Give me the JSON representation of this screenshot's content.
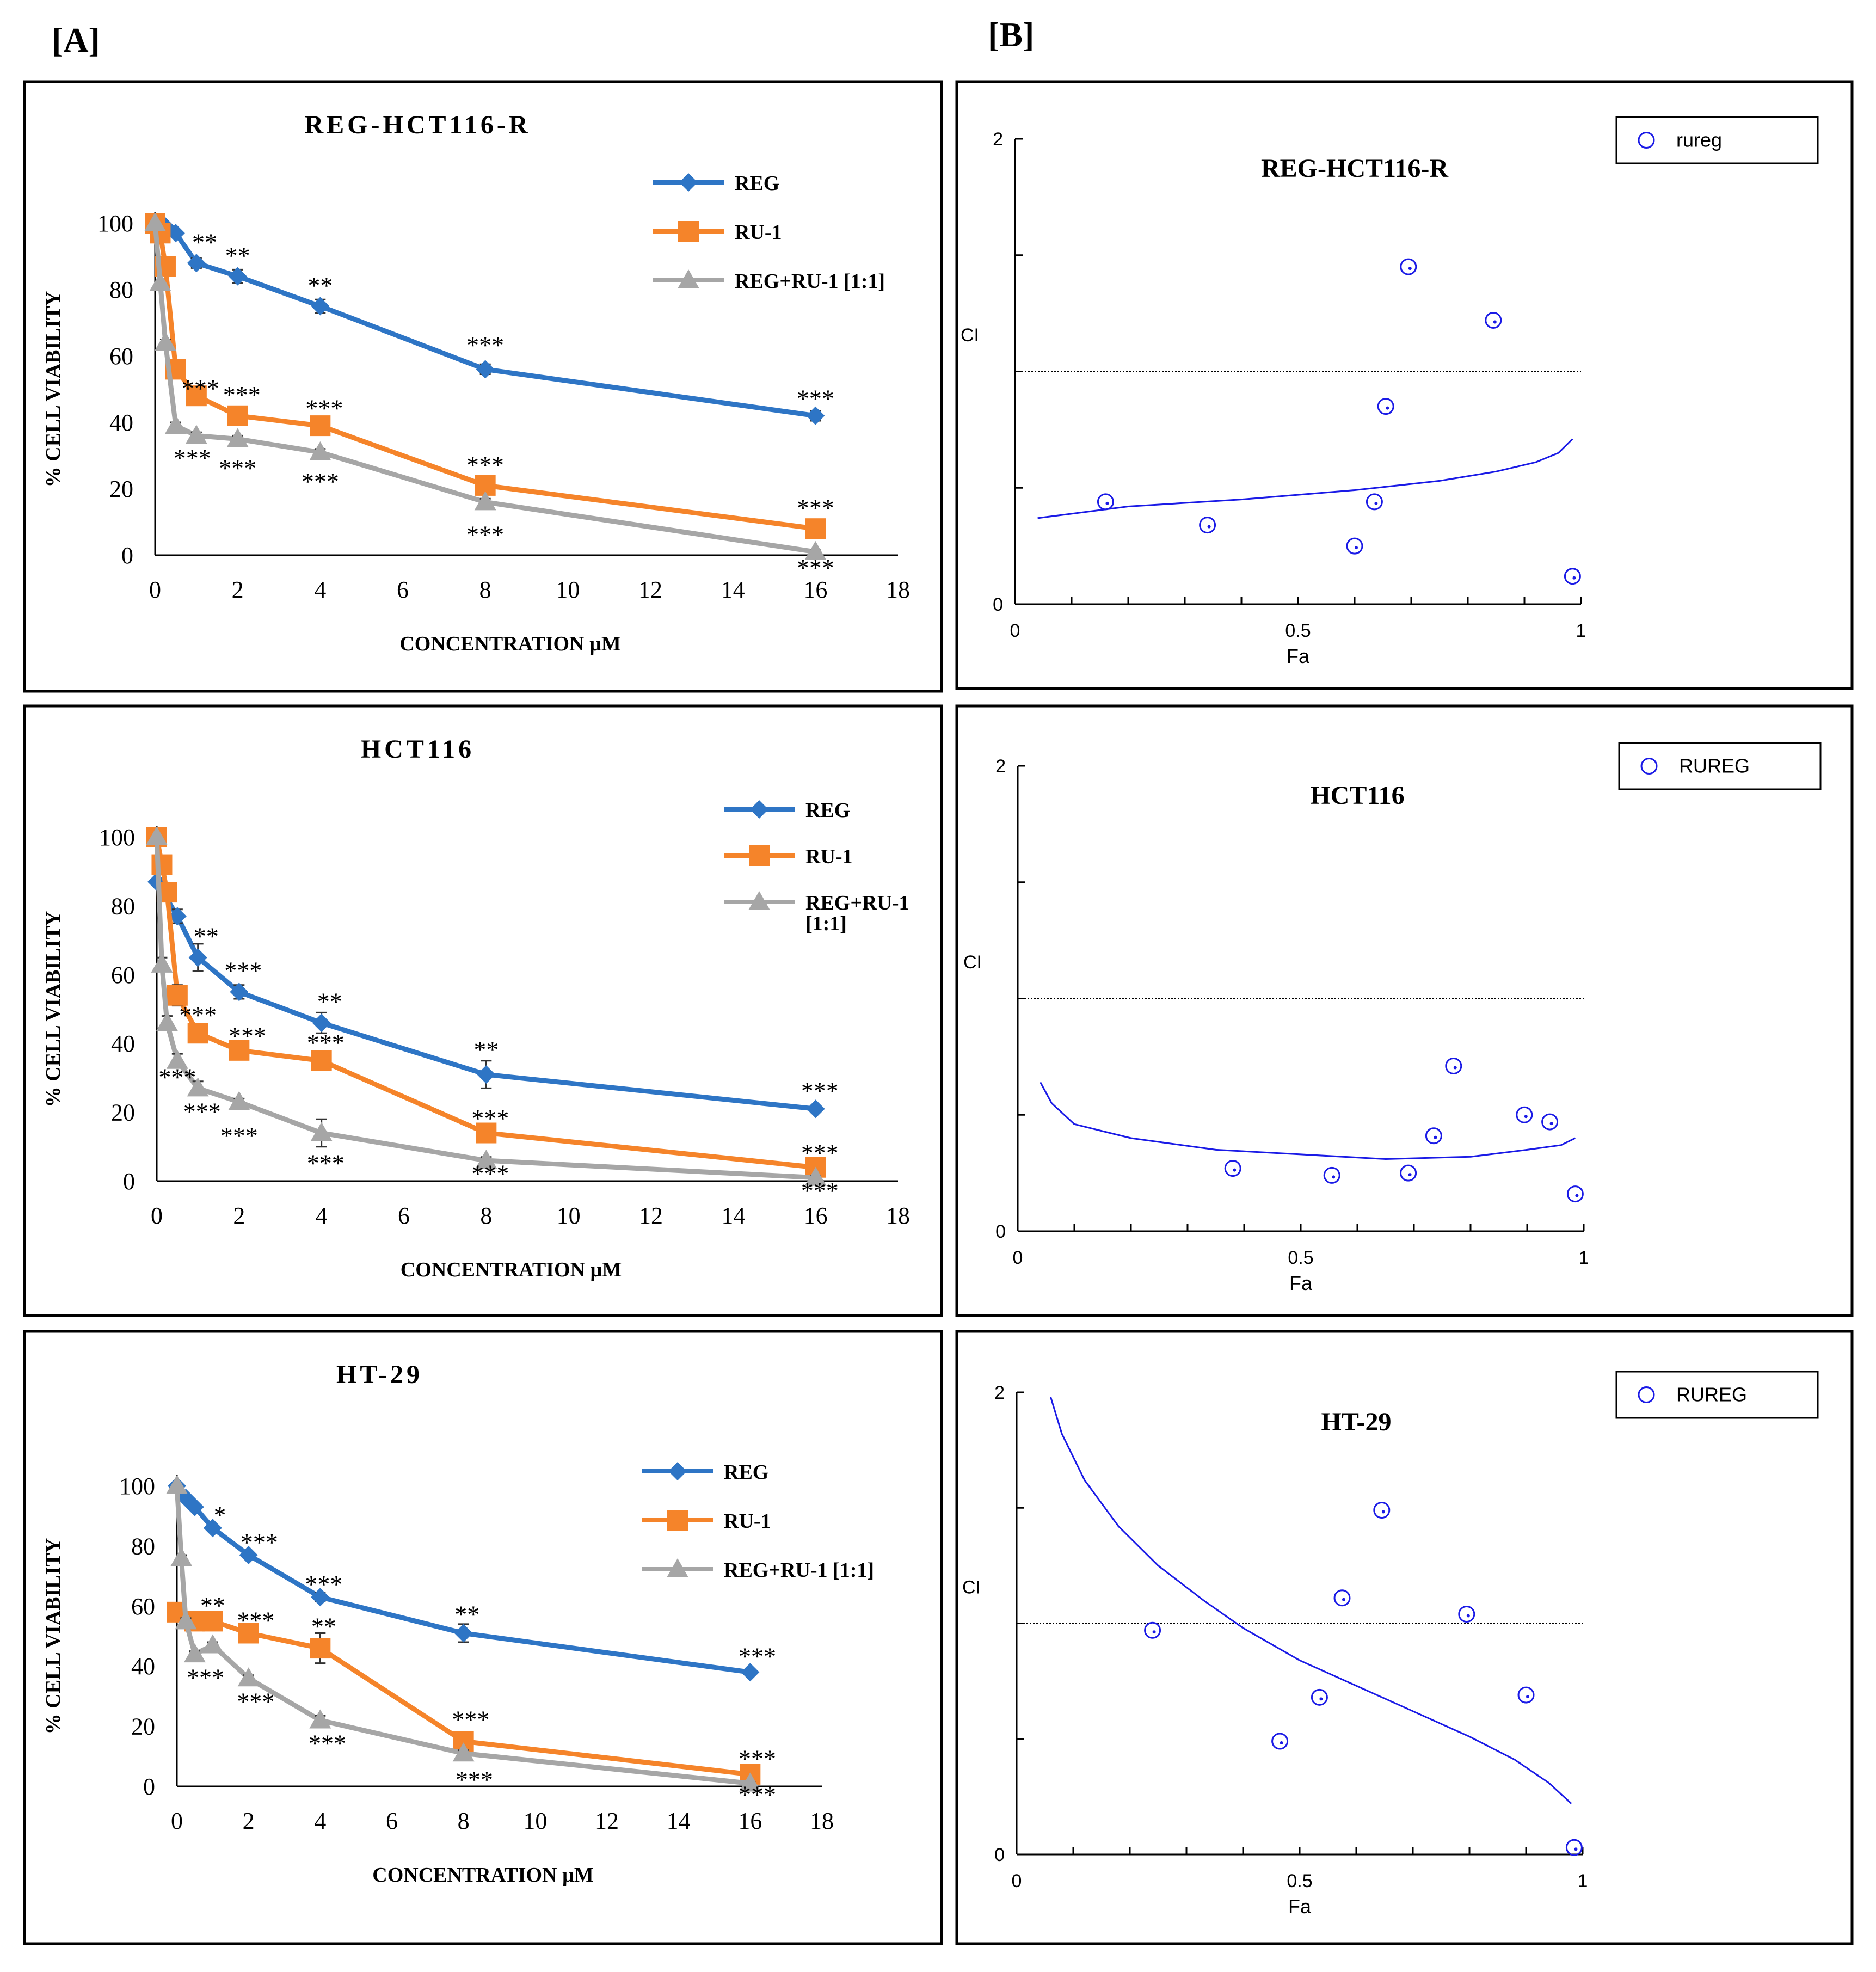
{
  "panel_labels": {
    "a": "[A]",
    "b": "[B]"
  },
  "colors": {
    "reg": "#2E75C5",
    "ru1": "#F5842A",
    "combo": "#A6A6A6",
    "ci": "#1A1AE6",
    "axis": "#000000"
  },
  "chart_data": [
    {
      "id": "a1",
      "type": "line",
      "title": "REG-HCT116-R",
      "xlabel": "CONCENTRATION µM",
      "ylabel": "% CELL VIABILITY",
      "xlim": [
        0,
        18
      ],
      "ylim": [
        0,
        100
      ],
      "xticks": [
        0,
        2,
        4,
        6,
        8,
        10,
        12,
        14,
        16,
        18
      ],
      "yticks": [
        0,
        20,
        40,
        60,
        80,
        100
      ],
      "legend": {
        "position": "top-right",
        "entries": [
          "REG",
          "RU-1",
          "REG+RU-1 [1:1]"
        ]
      },
      "series": [
        {
          "name": "REG",
          "marker": "diamond",
          "x": [
            0,
            0.25,
            0.5,
            1,
            2,
            4,
            8,
            16
          ],
          "y": [
            100,
            99,
            97,
            88,
            84,
            75,
            56,
            42
          ],
          "err": [
            0,
            0,
            1,
            1.5,
            2,
            2,
            1.5,
            1.5
          ]
        },
        {
          "name": "RU-1",
          "marker": "square",
          "x": [
            0,
            0.125,
            0.25,
            0.5,
            1,
            2,
            4,
            8,
            16
          ],
          "y": [
            100,
            97,
            87,
            56,
            48,
            42,
            39,
            21,
            8
          ],
          "err": [
            0,
            0,
            1,
            2,
            1.5,
            1.5,
            1.5,
            1.5,
            1
          ]
        },
        {
          "name": "REG+RU-1 [1:1]",
          "marker": "triangle",
          "x": [
            0,
            0.125,
            0.25,
            0.5,
            1,
            2,
            4,
            8,
            16
          ],
          "y": [
            100,
            82,
            64,
            39,
            36,
            35,
            31,
            16,
            1
          ],
          "err": [
            0,
            0,
            1,
            1,
            1,
            1,
            1,
            1,
            0.5
          ]
        }
      ],
      "annotations": [
        {
          "x": 1.2,
          "y": 94,
          "text": "**"
        },
        {
          "x": 2,
          "y": 90,
          "text": "**"
        },
        {
          "x": 4,
          "y": 81,
          "text": "**"
        },
        {
          "x": 8,
          "y": 63,
          "text": "***"
        },
        {
          "x": 16,
          "y": 47,
          "text": "***"
        },
        {
          "x": 1.1,
          "y": 50,
          "text": "***"
        },
        {
          "x": 2.1,
          "y": 48,
          "text": "***"
        },
        {
          "x": 4.1,
          "y": 44,
          "text": "***"
        },
        {
          "x": 8,
          "y": 27,
          "text": "***"
        },
        {
          "x": 16,
          "y": 14,
          "text": "***"
        },
        {
          "x": 0.9,
          "y": 29,
          "text": "***"
        },
        {
          "x": 2,
          "y": 26,
          "text": "***"
        },
        {
          "x": 4,
          "y": 22,
          "text": "***"
        },
        {
          "x": 8,
          "y": 6,
          "text": "***"
        },
        {
          "x": 16,
          "y": -4,
          "text": "***"
        }
      ]
    },
    {
      "id": "a2",
      "type": "line",
      "title": "HCT116",
      "xlabel": "CONCENTRATION µM",
      "ylabel": "% CELL VIABILITY",
      "xlim": [
        0,
        18
      ],
      "ylim": [
        0,
        100
      ],
      "xticks": [
        0,
        2,
        4,
        6,
        8,
        10,
        12,
        14,
        16,
        18
      ],
      "yticks": [
        0,
        20,
        40,
        60,
        80,
        100
      ],
      "legend": {
        "position": "top-right",
        "entries": [
          "REG",
          "RU-1",
          "REG+RU-1",
          "[1:1]"
        ]
      },
      "series": [
        {
          "name": "REG",
          "marker": "diamond",
          "x": [
            0,
            0.5,
            1,
            2,
            4,
            8,
            16
          ],
          "y": [
            87,
            77,
            65,
            55,
            46,
            31,
            21
          ],
          "err": [
            0,
            2,
            4,
            2,
            3,
            4,
            1
          ]
        },
        {
          "name": "RU-1",
          "marker": "square",
          "x": [
            0,
            0.125,
            0.25,
            0.5,
            1,
            2,
            4,
            8,
            16
          ],
          "y": [
            100,
            92,
            84,
            54,
            43,
            38,
            35,
            14,
            4
          ],
          "err": [
            0,
            1,
            1,
            3,
            2,
            2,
            2,
            2,
            1
          ]
        },
        {
          "name": "REG+RU-1 [1:1]",
          "marker": "triangle",
          "x": [
            0,
            0.125,
            0.25,
            0.5,
            1,
            2,
            4,
            8,
            16
          ],
          "y": [
            100,
            63,
            46,
            35,
            27,
            23,
            14,
            6,
            1
          ],
          "err": [
            0,
            2,
            2,
            2,
            2,
            1,
            4,
            1,
            0.5
          ]
        }
      ],
      "annotations": [
        {
          "x": 1.2,
          "y": 71,
          "text": "**"
        },
        {
          "x": 2.1,
          "y": 61,
          "text": "***"
        },
        {
          "x": 4.2,
          "y": 52,
          "text": "**"
        },
        {
          "x": 8,
          "y": 38,
          "text": "**"
        },
        {
          "x": 16.1,
          "y": 26,
          "text": "***"
        },
        {
          "x": 1,
          "y": 48,
          "text": "***"
        },
        {
          "x": 2.2,
          "y": 42,
          "text": "***"
        },
        {
          "x": 4.1,
          "y": 40,
          "text": "***"
        },
        {
          "x": 8.1,
          "y": 18,
          "text": "***"
        },
        {
          "x": 16.1,
          "y": 8,
          "text": "***"
        },
        {
          "x": 0.5,
          "y": 30,
          "text": "***"
        },
        {
          "x": 1.1,
          "y": 20,
          "text": "***"
        },
        {
          "x": 2,
          "y": 13,
          "text": "***"
        },
        {
          "x": 4.1,
          "y": 5,
          "text": "***"
        },
        {
          "x": 8.1,
          "y": 2,
          "text": "***"
        },
        {
          "x": 16.1,
          "y": -3,
          "text": "***"
        }
      ]
    },
    {
      "id": "a3",
      "type": "line",
      "title": "HT-29",
      "xlabel": "CONCENTRATION µM",
      "ylabel": "% CELL VIABILITY",
      "xlim": [
        0,
        18
      ],
      "ylim": [
        0,
        100
      ],
      "xticks": [
        0,
        2,
        4,
        6,
        8,
        10,
        12,
        14,
        16,
        18
      ],
      "yticks": [
        0,
        20,
        40,
        60,
        80,
        100
      ],
      "legend": {
        "position": "top-right",
        "entries": [
          "REG",
          "RU-1",
          "REG+RU-1 [1:1]"
        ]
      },
      "series": [
        {
          "name": "REG",
          "marker": "diamond",
          "x": [
            0,
            0.25,
            0.5,
            1,
            2,
            4,
            8,
            16
          ],
          "y": [
            100,
            96,
            93,
            86,
            77,
            63,
            51,
            38
          ],
          "err": [
            0,
            1,
            1,
            1,
            1,
            1.5,
            3,
            1
          ]
        },
        {
          "name": "RU-1",
          "marker": "square",
          "x": [
            0,
            0.5,
            1,
            2,
            4,
            8,
            16
          ],
          "y": [
            58,
            55,
            55,
            51,
            46,
            15,
            4
          ],
          "err": [
            0,
            2,
            2,
            2,
            5,
            1.5,
            1
          ]
        },
        {
          "name": "REG+RU-1 [1:1]",
          "marker": "triangle",
          "x": [
            0,
            0.125,
            0.25,
            0.5,
            1,
            2,
            4,
            8,
            16
          ],
          "y": [
            100,
            76,
            55,
            44,
            47,
            36,
            22,
            11,
            1
          ],
          "err": [
            0,
            1,
            1,
            1,
            1,
            1,
            1.5,
            1,
            0.5
          ]
        }
      ],
      "annotations": [
        {
          "x": 1.2,
          "y": 90,
          "text": "*"
        },
        {
          "x": 2.3,
          "y": 81,
          "text": "***"
        },
        {
          "x": 4.1,
          "y": 67,
          "text": "***"
        },
        {
          "x": 8.1,
          "y": 57,
          "text": "**"
        },
        {
          "x": 16.2,
          "y": 43,
          "text": "***"
        },
        {
          "x": 1,
          "y": 60,
          "text": "**"
        },
        {
          "x": 2.2,
          "y": 55,
          "text": "***"
        },
        {
          "x": 4.1,
          "y": 53,
          "text": "**"
        },
        {
          "x": 8.2,
          "y": 22,
          "text": "***"
        },
        {
          "x": 16.2,
          "y": 9,
          "text": "***"
        },
        {
          "x": 0.8,
          "y": 36,
          "text": "***"
        },
        {
          "x": 2.2,
          "y": 28,
          "text": "***"
        },
        {
          "x": 4.2,
          "y": 14,
          "text": "***"
        },
        {
          "x": 8.3,
          "y": 2,
          "text": "***"
        },
        {
          "x": 16.2,
          "y": -3,
          "text": "***"
        }
      ]
    },
    {
      "id": "b1",
      "type": "scatter",
      "title": "REG-HCT116-R",
      "xlabel": "Fa",
      "ylabel": "CI",
      "xlim": [
        0,
        1
      ],
      "ylim": [
        0,
        2
      ],
      "xtick_labels": [
        "0",
        "0.5",
        "1"
      ],
      "ytick_labels": [
        "0",
        "2"
      ],
      "reference_line": 1,
      "legend": {
        "position": "top-right",
        "entries": [
          "rureg"
        ]
      },
      "points": [
        [
          0.16,
          0.44
        ],
        [
          0.34,
          0.34
        ],
        [
          0.6,
          0.25
        ],
        [
          0.635,
          0.44
        ],
        [
          0.655,
          0.85
        ],
        [
          0.695,
          1.45
        ],
        [
          0.845,
          1.22
        ],
        [
          0.985,
          0.12
        ]
      ],
      "curve": [
        [
          0.04,
          0.37
        ],
        [
          0.2,
          0.42
        ],
        [
          0.4,
          0.45
        ],
        [
          0.6,
          0.49
        ],
        [
          0.75,
          0.53
        ],
        [
          0.85,
          0.57
        ],
        [
          0.92,
          0.61
        ],
        [
          0.96,
          0.65
        ],
        [
          0.985,
          0.71
        ]
      ]
    },
    {
      "id": "b2",
      "type": "scatter",
      "title": "HCT116",
      "xlabel": "Fa",
      "ylabel": "CI",
      "xlim": [
        0,
        1
      ],
      "ylim": [
        0,
        2
      ],
      "xtick_labels": [
        "0",
        "0.5",
        "1"
      ],
      "ytick_labels": [
        "0",
        "2"
      ],
      "reference_line": 1,
      "legend": {
        "position": "top-right",
        "entries": [
          "RUREG"
        ]
      },
      "points": [
        [
          0.38,
          0.27
        ],
        [
          0.555,
          0.24
        ],
        [
          0.69,
          0.25
        ],
        [
          0.735,
          0.41
        ],
        [
          0.77,
          0.71
        ],
        [
          0.895,
          0.5
        ],
        [
          0.94,
          0.47
        ],
        [
          0.985,
          0.16
        ]
      ],
      "curve": [
        [
          0.04,
          0.64
        ],
        [
          0.06,
          0.55
        ],
        [
          0.1,
          0.46
        ],
        [
          0.2,
          0.4
        ],
        [
          0.35,
          0.35
        ],
        [
          0.5,
          0.33
        ],
        [
          0.65,
          0.31
        ],
        [
          0.8,
          0.32
        ],
        [
          0.9,
          0.35
        ],
        [
          0.96,
          0.37
        ],
        [
          0.985,
          0.4
        ]
      ]
    },
    {
      "id": "b3",
      "type": "scatter",
      "title": "HT-29",
      "xlabel": "Fa",
      "ylabel": "CI",
      "xlim": [
        0,
        1
      ],
      "ylim": [
        0,
        2
      ],
      "xtick_labels": [
        "0",
        "0.5",
        "1"
      ],
      "ytick_labels": [
        "0",
        "2"
      ],
      "reference_line": 1,
      "legend": {
        "position": "top-right",
        "entries": [
          "RUREG"
        ]
      },
      "points": [
        [
          0.24,
          0.97
        ],
        [
          0.465,
          0.49
        ],
        [
          0.535,
          0.68
        ],
        [
          0.575,
          1.11
        ],
        [
          0.645,
          1.49
        ],
        [
          0.795,
          1.04
        ],
        [
          0.9,
          0.69
        ],
        [
          0.985,
          0.03
        ]
      ],
      "curve": [
        [
          0.06,
          1.98
        ],
        [
          0.08,
          1.82
        ],
        [
          0.12,
          1.62
        ],
        [
          0.18,
          1.42
        ],
        [
          0.25,
          1.25
        ],
        [
          0.33,
          1.1
        ],
        [
          0.4,
          0.98
        ],
        [
          0.5,
          0.84
        ],
        [
          0.6,
          0.73
        ],
        [
          0.7,
          0.62
        ],
        [
          0.8,
          0.51
        ],
        [
          0.88,
          0.41
        ],
        [
          0.94,
          0.31
        ],
        [
          0.98,
          0.22
        ]
      ]
    }
  ]
}
